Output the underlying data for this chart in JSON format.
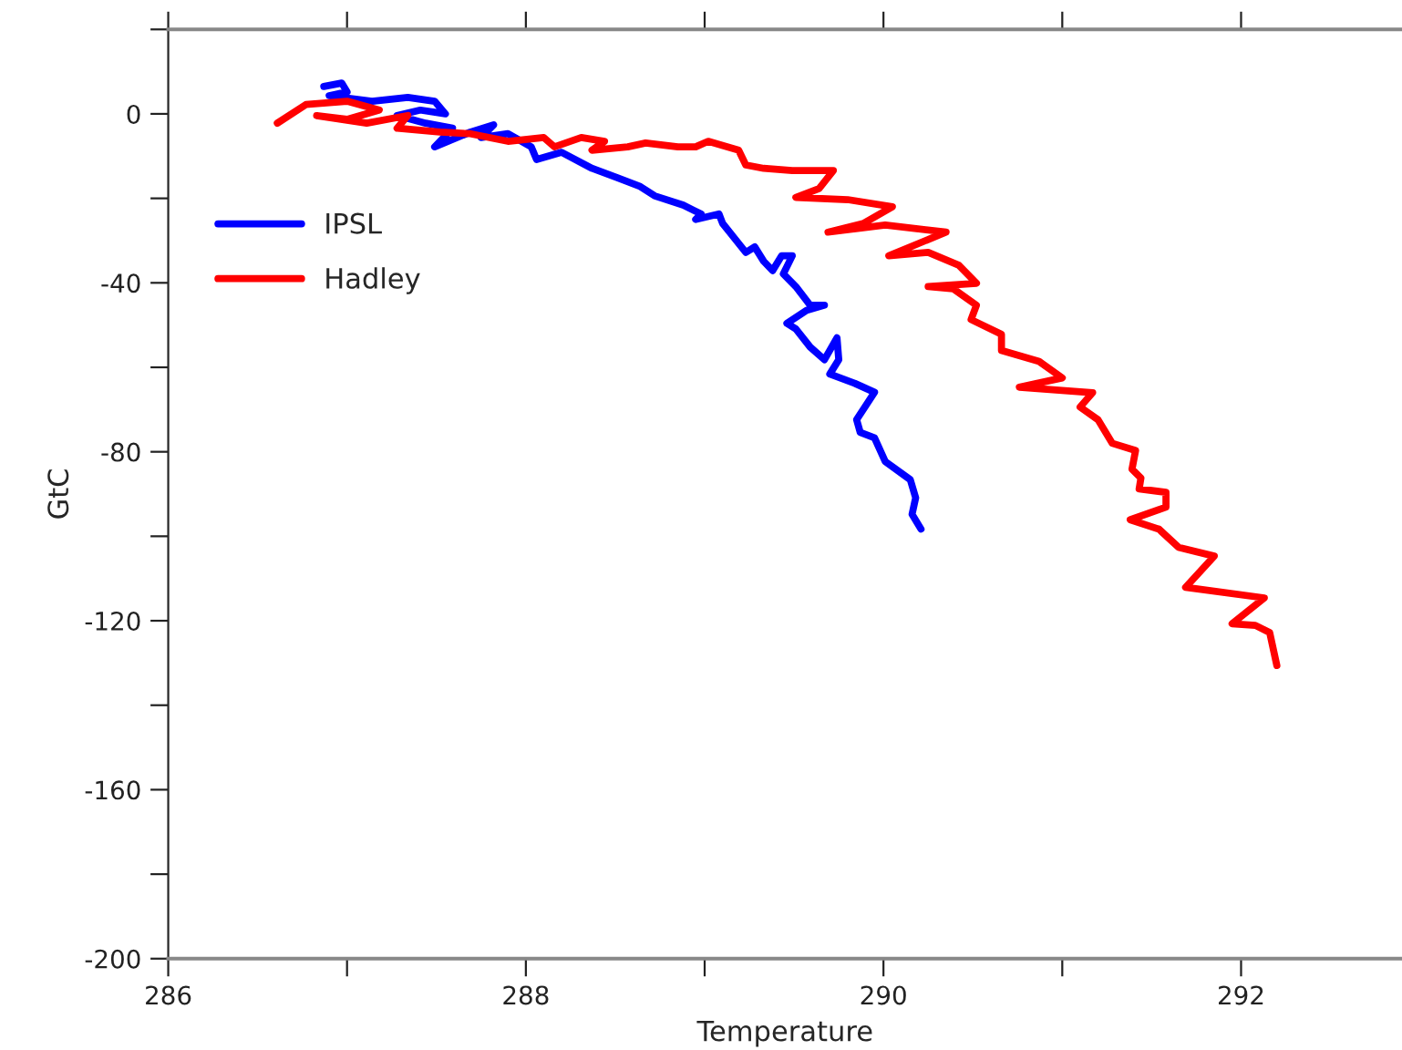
{
  "chart_data": {
    "type": "line",
    "xlabel": "Temperature",
    "ylabel": "GtC",
    "xlim": [
      286,
      292.9
    ],
    "ylim": [
      -200,
      20
    ],
    "xticks": [
      286,
      {
        "value": 287,
        "label": null
      },
      288,
      {
        "value": 289,
        "label": null
      },
      290,
      {
        "value": 291,
        "label": null
      },
      292
    ],
    "yticks": [
      -200,
      {
        "value": -180,
        "label": null
      },
      -160,
      {
        "value": -140,
        "label": null
      },
      -120,
      {
        "value": -100,
        "label": null
      },
      -80,
      {
        "value": -60,
        "label": null
      },
      -40,
      {
        "value": -20,
        "label": null
      },
      0,
      {
        "value": 20,
        "label": null
      }
    ],
    "grid": false,
    "legend": "top left",
    "marker": "none",
    "line_style": "solid",
    "series": [
      {
        "name": "IPSL",
        "color": "#0000ff",
        "x": [
          286.87,
          286.97,
          287.0,
          286.9,
          287.14,
          287.34,
          287.49,
          287.55,
          287.41,
          287.28,
          287.44,
          287.59,
          287.49,
          287.69,
          287.82,
          287.75,
          287.9,
          288.03,
          288.06,
          288.2,
          288.37,
          288.51,
          288.64,
          288.72,
          288.88,
          288.98,
          288.95,
          289.08,
          289.1,
          289.23,
          289.28,
          289.33,
          289.38,
          289.43,
          289.49,
          289.44,
          289.51,
          289.59,
          289.67,
          289.57,
          289.46,
          289.51,
          289.59,
          289.67,
          289.74,
          289.75,
          289.7,
          289.84,
          289.95,
          289.85,
          289.87,
          289.95,
          290.01,
          290.15,
          290.18,
          290.16,
          290.21
        ],
        "values": [
          6.5,
          7.3,
          5.2,
          4.3,
          3.0,
          3.9,
          3.0,
          0,
          0.9,
          -0.4,
          -2.2,
          -3.4,
          -7.8,
          -4.3,
          -2.6,
          -5.6,
          -4.7,
          -7.8,
          -10.8,
          -9.1,
          -12.9,
          -15.1,
          -17.2,
          -19.4,
          -21.6,
          -23.7,
          -25.0,
          -23.7,
          -25.9,
          -32.8,
          -31.5,
          -34.9,
          -37.1,
          -33.6,
          -33.6,
          -37.9,
          -40.9,
          -45.3,
          -45.3,
          -46.5,
          -49.6,
          -50.9,
          -55.2,
          -58.2,
          -53.0,
          -58.2,
          -61.6,
          -63.8,
          -65.9,
          -72.4,
          -75.4,
          -76.7,
          -82.3,
          -86.6,
          -90.9,
          -94.8,
          -98.3
        ]
      },
      {
        "name": "Hadley",
        "color": "#ff0000",
        "x": [
          286.61,
          286.77,
          287.0,
          287.18,
          287.0,
          286.83,
          287.11,
          287.34,
          287.28,
          287.52,
          287.69,
          287.9,
          288.1,
          288.16,
          288.31,
          288.44,
          288.37,
          288.57,
          288.67,
          288.85,
          288.95,
          289.02,
          289.19,
          289.23,
          289.33,
          289.49,
          289.72,
          289.64,
          289.51,
          289.8,
          290.05,
          289.89,
          289.69,
          290.01,
          290.35,
          290.03,
          290.25,
          290.42,
          290.52,
          290.25,
          290.39,
          290.52,
          290.49,
          290.66,
          290.66,
          290.87,
          291.0,
          290.76,
          291.17,
          291.1,
          291.2,
          291.28,
          291.41,
          291.39,
          291.44,
          291.43,
          291.58,
          291.58,
          291.38,
          291.54,
          291.65,
          291.85,
          291.69,
          292.13,
          291.95,
          292.08,
          292.16,
          292.2
        ],
        "values": [
          -2.2,
          2.2,
          3.0,
          0.9,
          -1.3,
          -0.4,
          -2.2,
          -0.4,
          -3.4,
          -4.3,
          -4.7,
          -6.5,
          -5.6,
          -7.8,
          -5.6,
          -6.5,
          -8.6,
          -7.8,
          -6.9,
          -7.8,
          -7.8,
          -6.5,
          -8.6,
          -12.1,
          -12.9,
          -13.4,
          -13.4,
          -17.7,
          -19.8,
          -20.3,
          -22.0,
          -25.9,
          -28.0,
          -26.3,
          -28.0,
          -33.6,
          -32.8,
          -35.8,
          -40.1,
          -40.9,
          -41.4,
          -45.3,
          -48.7,
          -52.2,
          -56.0,
          -58.6,
          -62.5,
          -64.7,
          -66.0,
          -69.4,
          -72.4,
          -78.0,
          -79.7,
          -84.1,
          -86.2,
          -88.8,
          -89.6,
          -93.1,
          -96.1,
          -98.3,
          -102.6,
          -104.7,
          -112.1,
          -114.6,
          -120.7,
          -121.1,
          -122.8,
          -130.6
        ]
      }
    ]
  }
}
